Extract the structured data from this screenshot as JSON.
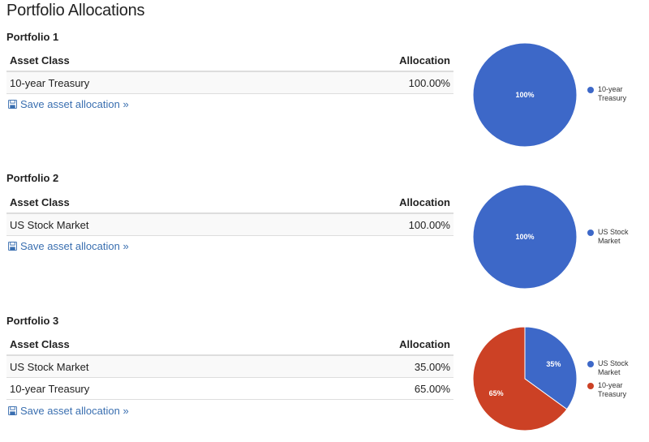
{
  "page": {
    "title": "Portfolio Allocations"
  },
  "table_headers": {
    "asset_class": "Asset Class",
    "allocation": "Allocation"
  },
  "save_label": "Save asset allocation »",
  "icons": {
    "save": "floppy-disk-icon"
  },
  "colors": {
    "blue": "#3d68c8",
    "red": "#cc4125",
    "link": "#3a6fb0"
  },
  "portfolios": [
    {
      "title": "Portfolio 1",
      "rows": [
        {
          "asset": "10-year Treasury",
          "allocation": "100.00%"
        }
      ]
    },
    {
      "title": "Portfolio 2",
      "rows": [
        {
          "asset": "US Stock Market",
          "allocation": "100.00%"
        }
      ]
    },
    {
      "title": "Portfolio 3",
      "rows": [
        {
          "asset": "US Stock Market",
          "allocation": "35.00%"
        },
        {
          "asset": "10-year Treasury",
          "allocation": "65.00%"
        }
      ]
    }
  ],
  "chart_data": [
    {
      "type": "pie",
      "series": [
        {
          "name": "10-year Treasury",
          "value": 100,
          "label": "100%",
          "color": "#3d68c8"
        }
      ],
      "legend_position": "right"
    },
    {
      "type": "pie",
      "series": [
        {
          "name": "US Stock Market",
          "value": 100,
          "label": "100%",
          "color": "#3d68c8"
        }
      ],
      "legend_position": "right"
    },
    {
      "type": "pie",
      "series": [
        {
          "name": "US Stock Market",
          "value": 35,
          "label": "35%",
          "color": "#3d68c8"
        },
        {
          "name": "10-year Treasury",
          "value": 65,
          "label": "65%",
          "color": "#cc4125"
        }
      ],
      "legend_position": "right"
    }
  ]
}
